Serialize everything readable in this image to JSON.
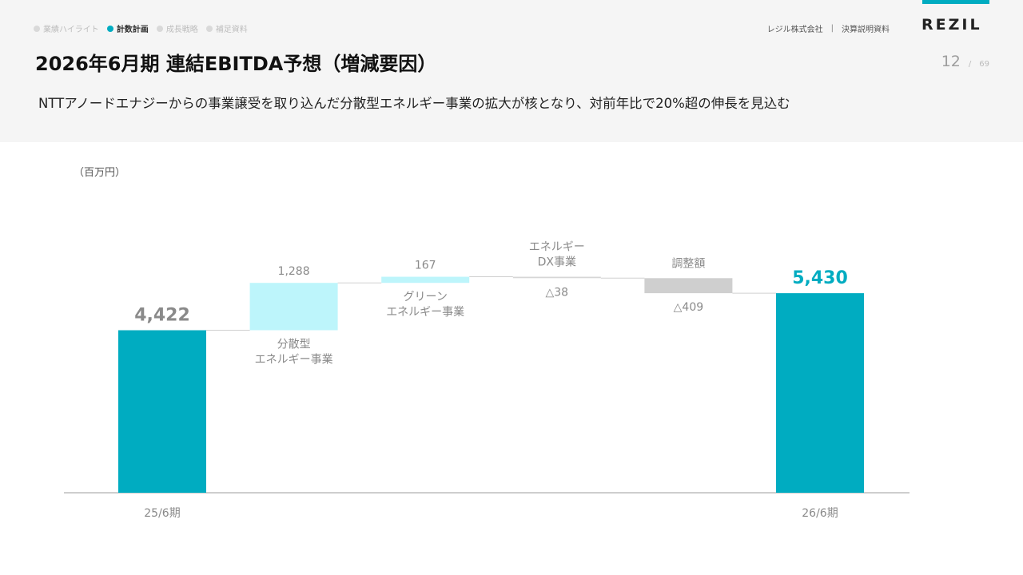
{
  "nav": {
    "items": [
      {
        "label": "業績ハイライト",
        "active": false
      },
      {
        "label": "計数計画",
        "active": true
      },
      {
        "label": "成長戦略",
        "active": false
      },
      {
        "label": "補足資料",
        "active": false
      }
    ]
  },
  "header": {
    "company": "レジル株式会社",
    "separator": "|",
    "doc": "決算説明資料",
    "logo": "REZIL",
    "page_current": "12",
    "page_slash": "/",
    "page_total": "69"
  },
  "title": "2026年6月期 連結EBITDA予想（増減要因）",
  "subtitle": "NTTアノードエナジーからの事業譲受を取り込んだ分散型エネルギー事業の拡大が核となり、対前年比で20%超の伸長を見込む",
  "colors": {
    "accent": "#00acc1",
    "light_accent": "#bdf5fb",
    "gray_bar": "#cfcfcf",
    "value_gray": "#8a8a8a"
  },
  "chart_data": {
    "type": "bar",
    "subtype": "waterfall",
    "unit": "（百万円）",
    "ylim": [
      0,
      6000
    ],
    "steps": [
      {
        "label_lines": [
          "25/6期"
        ],
        "value": 4422,
        "value_label": "4,422",
        "kind": "total",
        "label_pos": "axis"
      },
      {
        "label_lines": [
          "分散型",
          "エネルギー事業"
        ],
        "value": 1288,
        "value_label": "1,288",
        "kind": "increase",
        "label_pos": "below"
      },
      {
        "label_lines": [
          "グリーン",
          "エネルギー事業"
        ],
        "value": 167,
        "value_label": "167",
        "kind": "increase",
        "label_pos": "below"
      },
      {
        "label_lines": [
          "エネルギー",
          "DX事業"
        ],
        "value": -38,
        "value_label": "△38",
        "kind": "decrease",
        "label_pos": "above"
      },
      {
        "label_lines": [
          "調整額"
        ],
        "value": -409,
        "value_label": "△409",
        "kind": "adjust",
        "label_pos": "above"
      },
      {
        "label_lines": [
          "26/6期"
        ],
        "value": 5430,
        "value_label": "5,430",
        "kind": "total",
        "label_pos": "axis"
      }
    ]
  }
}
